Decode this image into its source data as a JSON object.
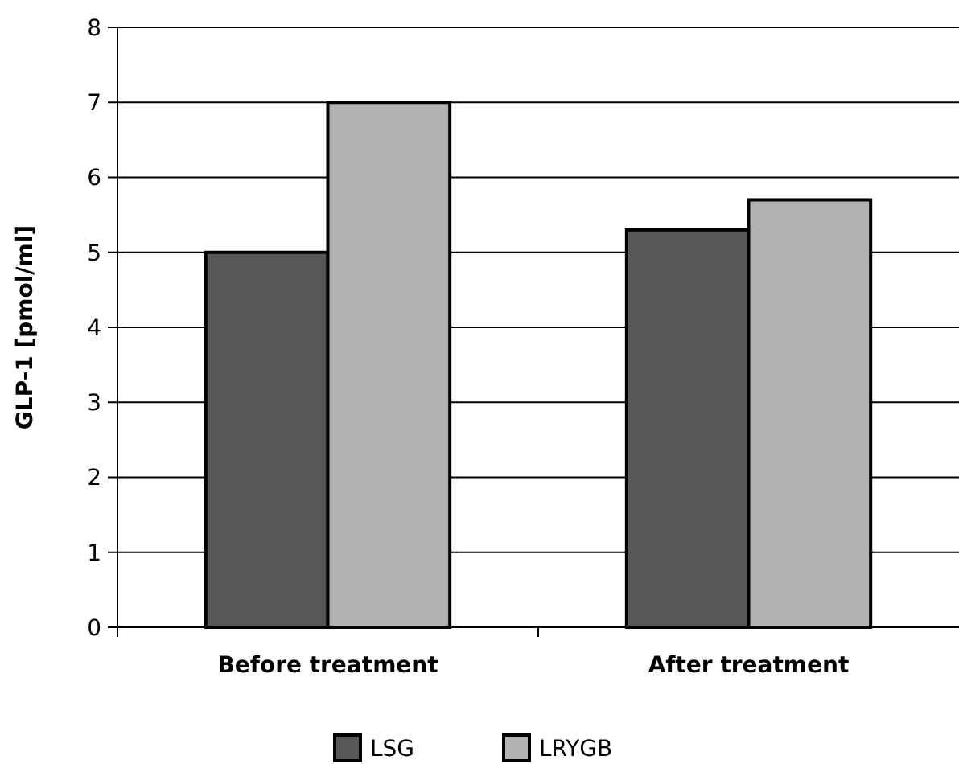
{
  "chart_data": {
    "type": "bar",
    "ylabel": "GLP-1 [pmol/ml]",
    "categories": [
      "Before treatment",
      "After treatment"
    ],
    "series": [
      {
        "name": "LSG",
        "color": "#575757",
        "values": [
          5,
          5.3
        ]
      },
      {
        "name": "LRYGB",
        "color": "#b2b2b2",
        "values": [
          7,
          5.7
        ]
      }
    ],
    "ylim": [
      0,
      8
    ],
    "yticks": [
      0,
      1,
      2,
      3,
      4,
      5,
      6,
      7,
      8
    ],
    "grid": "y",
    "legend": "bottom"
  }
}
